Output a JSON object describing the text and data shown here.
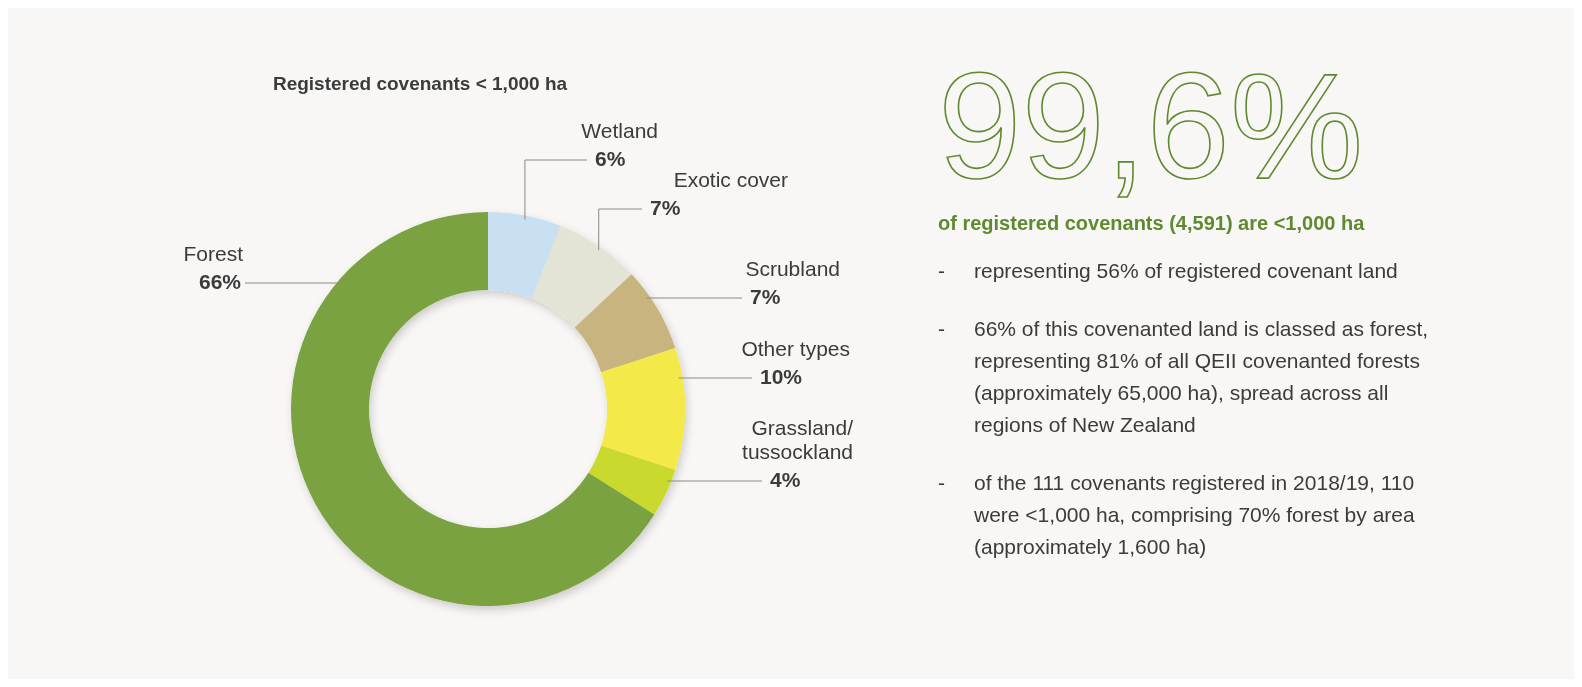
{
  "chart_data": [
    {
      "type": "donut",
      "title": "Registered covenants < 1,000 ha",
      "categories": [
        "Wetland",
        "Exotic cover",
        "Scrubland",
        "Other types",
        "Grassland/ tussockland",
        "Forest"
      ],
      "values": [
        6,
        7,
        7,
        10,
        4,
        66
      ],
      "colors": [
        "#c9dff2",
        "#e3e4d6",
        "#c8b47e",
        "#f3ea48",
        "#c9d92e",
        "#7aa23f"
      ],
      "value_labels": [
        "6%",
        "7%",
        "7%",
        "10%",
        "4%",
        "66%"
      ]
    },
    {
      "type": "other",
      "title": "99,6%",
      "subtitle": "of registered covenants (4,591) are <1,000 ha",
      "annotations": [
        "- representing 56% of registered covenant land",
        "- 66% of this covenanted land is classed as forest, representing 81% of all QEII covenanted forests (approximately 65,000 ha), spread across all regions of New Zealand",
        "- of the 111 covenants registered in 2018/19, 110 were <1,000 ha, comprising 70% forest by area (approximately 1,600 ha)"
      ]
    }
  ]
}
